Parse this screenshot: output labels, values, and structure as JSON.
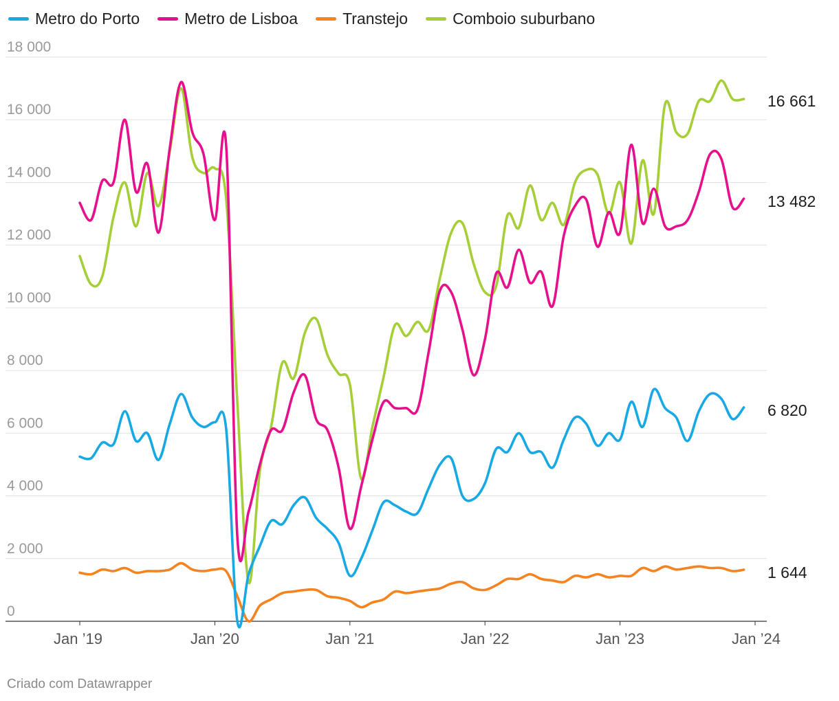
{
  "legend": [
    {
      "label": "Metro do Porto",
      "color": "#18a9e4"
    },
    {
      "label": "Metro de Lisboa",
      "color": "#e6108c"
    },
    {
      "label": "Transtejo",
      "color": "#f5831f"
    },
    {
      "label": "Comboio suburbano",
      "color": "#a6ce39"
    }
  ],
  "footer": {
    "credit": "Criado com Datawrapper"
  },
  "chart_data": {
    "type": "line",
    "title": "",
    "xlabel": "",
    "ylabel": "",
    "ylim": [
      0,
      18000
    ],
    "yticks": [
      0,
      2000,
      4000,
      6000,
      8000,
      10000,
      12000,
      14000,
      16000,
      18000
    ],
    "ytick_labels": [
      "0",
      "2 000",
      "4 000",
      "6 000",
      "8 000",
      "10 000",
      "12 000",
      "14 000",
      "16 000",
      "18 000"
    ],
    "xlim": [
      0,
      60
    ],
    "xticks": [
      0,
      12,
      24,
      36,
      48,
      60
    ],
    "xtick_labels": [
      "Jan ’19",
      "Jan ’20",
      "Jan ’21",
      "Jan ’22",
      "Jan ’23",
      "Jan ’24"
    ],
    "grid": true,
    "legend_position": "top-left",
    "end_labels": [
      "6 820",
      "13 482",
      "1 644",
      "16 661"
    ],
    "series": [
      {
        "name": "Metro do Porto",
        "color": "#18a9e4",
        "values": [
          5250,
          5200,
          5700,
          5650,
          6700,
          5750,
          6000,
          5150,
          6300,
          7250,
          6500,
          6200,
          6350,
          6150,
          0,
          1500,
          2400,
          3200,
          3100,
          3700,
          3950,
          3300,
          2950,
          2500,
          1450,
          2000,
          2900,
          3800,
          3700,
          3500,
          3450,
          4250,
          5000,
          5200,
          4000,
          3900,
          4400,
          5500,
          5400,
          6000,
          5400,
          5400,
          4900,
          5800,
          6500,
          6300,
          5600,
          6000,
          5800,
          7000,
          6200,
          7400,
          6800,
          6500,
          5750,
          6700,
          7250,
          7100,
          6450,
          6820
        ]
      },
      {
        "name": "Metro de Lisboa",
        "color": "#e6108c",
        "values": [
          13350,
          12800,
          14050,
          14000,
          16000,
          13700,
          14600,
          12400,
          15100,
          17200,
          15600,
          14900,
          12800,
          15200,
          2700,
          3500,
          5000,
          6100,
          6100,
          7300,
          7850,
          6450,
          6100,
          4900,
          2950,
          4300,
          5800,
          7000,
          6800,
          6800,
          6750,
          8600,
          10550,
          10500,
          9300,
          7850,
          9000,
          11100,
          10650,
          11850,
          10800,
          11150,
          10050,
          12300,
          13250,
          13450,
          11950,
          13050,
          12400,
          15200,
          12700,
          13800,
          12600,
          12600,
          12800,
          13700,
          14900,
          14750,
          13200,
          13482
        ]
      },
      {
        "name": "Transtejo",
        "color": "#f5831f",
        "values": [
          1550,
          1500,
          1650,
          1600,
          1700,
          1550,
          1600,
          1600,
          1650,
          1850,
          1650,
          1600,
          1650,
          1600,
          800,
          0,
          500,
          700,
          900,
          950,
          1000,
          1000,
          800,
          750,
          650,
          450,
          600,
          700,
          950,
          900,
          950,
          1000,
          1050,
          1200,
          1250,
          1050,
          1000,
          1150,
          1350,
          1350,
          1500,
          1350,
          1300,
          1250,
          1450,
          1400,
          1500,
          1400,
          1450,
          1450,
          1700,
          1600,
          1750,
          1650,
          1700,
          1750,
          1700,
          1700,
          1600,
          1644
        ]
      },
      {
        "name": "Comboio suburbano",
        "color": "#a6ce39",
        "values": [
          11650,
          10750,
          11000,
          12900,
          14000,
          12600,
          14300,
          13250,
          15000,
          17000,
          14800,
          14300,
          14450,
          13500,
          7000,
          1250,
          4800,
          6200,
          8250,
          7750,
          9200,
          9650,
          8500,
          7900,
          7550,
          4550,
          6200,
          7800,
          9450,
          9100,
          9550,
          9300,
          10950,
          12400,
          12700,
          11400,
          10500,
          10700,
          12950,
          12550,
          13900,
          12800,
          13350,
          12650,
          14000,
          14400,
          14250,
          13000,
          14000,
          12050,
          14700,
          13000,
          16500,
          15600,
          15550,
          16600,
          16600,
          17250,
          16661,
          16661
        ]
      }
    ]
  }
}
